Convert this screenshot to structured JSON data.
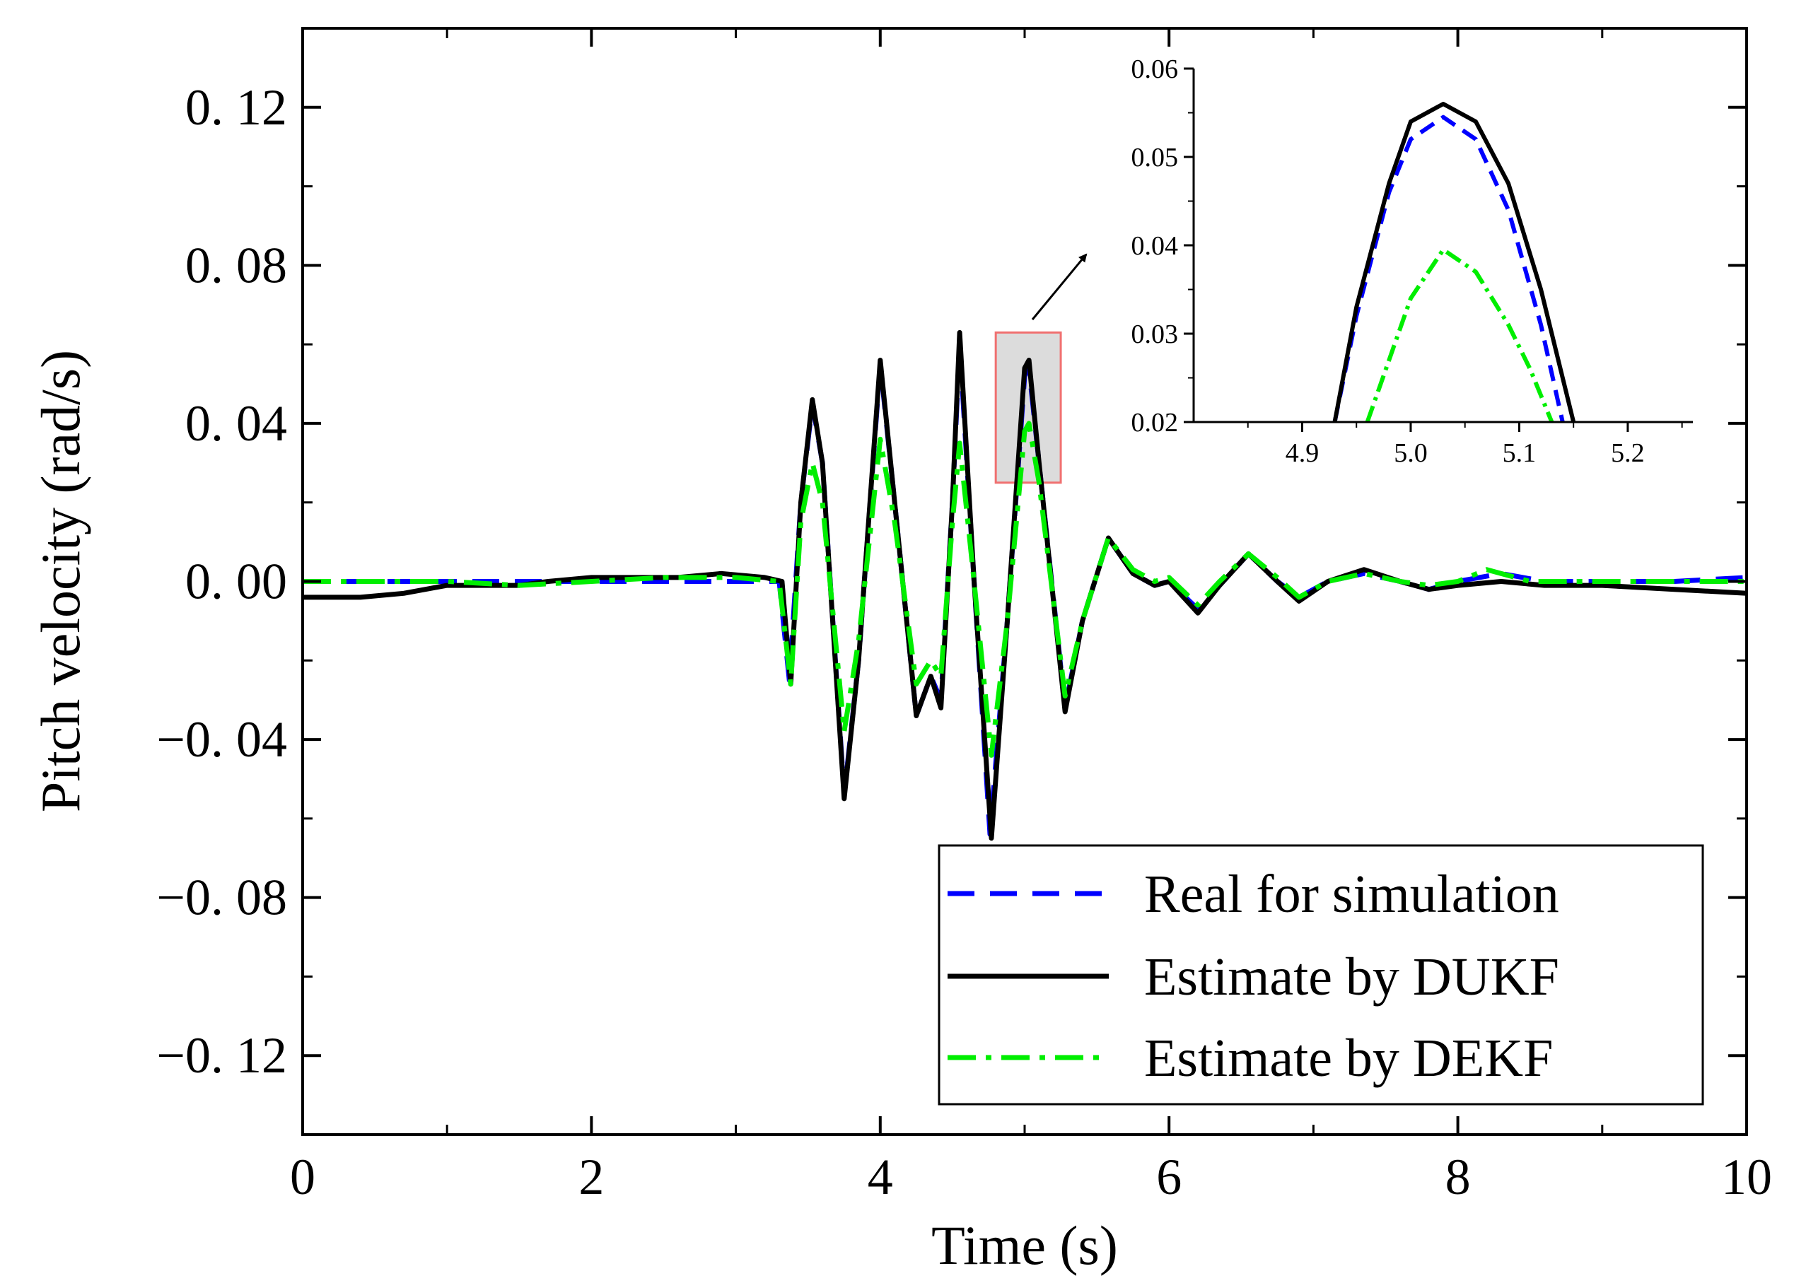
{
  "chart_data": [
    {
      "id": "main",
      "type": "line",
      "title": "",
      "xlabel": "Time (s)",
      "ylabel": "Pitch velocity (rad/s)",
      "xlim": [
        0,
        10
      ],
      "ylim": [
        -0.14,
        0.14
      ],
      "xticks": [
        0,
        2,
        4,
        6,
        8,
        10
      ],
      "xtick_labels": [
        "0",
        "2",
        "4",
        "6",
        "8",
        "10"
      ],
      "yticks": [
        -0.12,
        -0.08,
        -0.04,
        0.0,
        0.04,
        0.08,
        0.12
      ],
      "ytick_labels": [
        "−0. 12",
        "−0. 08",
        "−0. 04",
        "0. 00",
        "0. 04",
        "0. 08",
        "0. 12"
      ],
      "grid": false,
      "legend_position": "bottom-right",
      "series": [
        {
          "name": "Real for simulation",
          "color": "#0000ff",
          "style": "dashed",
          "points": [
            [
              0,
              0.0
            ],
            [
              0.5,
              0.0
            ],
            [
              1.0,
              0.0
            ],
            [
              1.5,
              0.0
            ],
            [
              2.0,
              0.0
            ],
            [
              2.5,
              0.0
            ],
            [
              3.0,
              0.0
            ],
            [
              3.3,
              0.0
            ],
            [
              3.37,
              -0.025
            ],
            [
              3.45,
              0.02
            ],
            [
              3.53,
              0.045
            ],
            [
              3.6,
              0.03
            ],
            [
              3.75,
              -0.054
            ],
            [
              3.85,
              -0.02
            ],
            [
              4.0,
              0.055
            ],
            [
              4.1,
              0.02
            ],
            [
              4.25,
              -0.034
            ],
            [
              4.35,
              -0.024
            ],
            [
              4.42,
              -0.03
            ],
            [
              4.5,
              0.02
            ],
            [
              4.55,
              0.06
            ],
            [
              4.65,
              0.0
            ],
            [
              4.76,
              -0.064
            ],
            [
              4.88,
              -0.01
            ],
            [
              5.0,
              0.052
            ],
            [
              5.03,
              0.054
            ],
            [
              5.1,
              0.03
            ],
            [
              5.28,
              -0.032
            ],
            [
              5.4,
              -0.01
            ],
            [
              5.58,
              0.011
            ],
            [
              5.75,
              0.002
            ],
            [
              5.9,
              -0.001
            ],
            [
              6.0,
              0.0
            ],
            [
              6.2,
              -0.007
            ],
            [
              6.35,
              -0.001
            ],
            [
              6.55,
              0.007
            ],
            [
              6.75,
              0.0
            ],
            [
              6.9,
              -0.004
            ],
            [
              7.1,
              0.0
            ],
            [
              7.35,
              0.002
            ],
            [
              7.6,
              0.0
            ],
            [
              7.8,
              -0.002
            ],
            [
              8.0,
              0.0
            ],
            [
              8.3,
              0.002
            ],
            [
              8.6,
              0.0
            ],
            [
              9.0,
              0.0
            ],
            [
              9.5,
              0.0
            ],
            [
              10.0,
              0.001
            ]
          ]
        },
        {
          "name": "Estimate by DUKF",
          "color": "#000000",
          "style": "solid",
          "points": [
            [
              0,
              -0.004
            ],
            [
              0.4,
              -0.004
            ],
            [
              0.7,
              -0.003
            ],
            [
              1.0,
              -0.001
            ],
            [
              1.5,
              -0.001
            ],
            [
              1.7,
              0.0
            ],
            [
              2.0,
              0.001
            ],
            [
              2.3,
              0.001
            ],
            [
              2.6,
              0.001
            ],
            [
              2.9,
              0.002
            ],
            [
              3.2,
              0.001
            ],
            [
              3.32,
              0.0
            ],
            [
              3.38,
              -0.026
            ],
            [
              3.45,
              0.02
            ],
            [
              3.53,
              0.046
            ],
            [
              3.6,
              0.03
            ],
            [
              3.75,
              -0.055
            ],
            [
              3.85,
              -0.02
            ],
            [
              4.0,
              0.056
            ],
            [
              4.1,
              0.02
            ],
            [
              4.25,
              -0.034
            ],
            [
              4.35,
              -0.024
            ],
            [
              4.42,
              -0.032
            ],
            [
              4.5,
              0.02
            ],
            [
              4.55,
              0.063
            ],
            [
              4.65,
              0.0
            ],
            [
              4.77,
              -0.065
            ],
            [
              4.88,
              -0.01
            ],
            [
              5.0,
              0.054
            ],
            [
              5.03,
              0.056
            ],
            [
              5.1,
              0.03
            ],
            [
              5.28,
              -0.033
            ],
            [
              5.4,
              -0.01
            ],
            [
              5.58,
              0.011
            ],
            [
              5.75,
              0.002
            ],
            [
              5.9,
              -0.001
            ],
            [
              6.0,
              0.0
            ],
            [
              6.2,
              -0.008
            ],
            [
              6.35,
              -0.001
            ],
            [
              6.55,
              0.007
            ],
            [
              6.75,
              0.0
            ],
            [
              6.9,
              -0.005
            ],
            [
              7.1,
              0.0
            ],
            [
              7.35,
              0.003
            ],
            [
              7.6,
              0.0
            ],
            [
              7.8,
              -0.002
            ],
            [
              8.0,
              -0.001
            ],
            [
              8.3,
              0.0
            ],
            [
              8.6,
              -0.001
            ],
            [
              9.0,
              -0.001
            ],
            [
              9.5,
              -0.002
            ],
            [
              10.0,
              -0.003
            ]
          ]
        },
        {
          "name": "Estimate by DEKF",
          "color": "#00ee00",
          "style": "dashdot",
          "points": [
            [
              0,
              0.0
            ],
            [
              0.5,
              0.0
            ],
            [
              1.0,
              0.0
            ],
            [
              1.5,
              -0.001
            ],
            [
              2.0,
              0.0
            ],
            [
              2.5,
              0.001
            ],
            [
              3.0,
              0.001
            ],
            [
              3.3,
              0.0
            ],
            [
              3.38,
              -0.026
            ],
            [
              3.45,
              0.015
            ],
            [
              3.53,
              0.03
            ],
            [
              3.6,
              0.02
            ],
            [
              3.75,
              -0.038
            ],
            [
              3.85,
              -0.015
            ],
            [
              4.0,
              0.036
            ],
            [
              4.1,
              0.015
            ],
            [
              4.25,
              -0.026
            ],
            [
              4.35,
              -0.02
            ],
            [
              4.42,
              -0.024
            ],
            [
              4.5,
              0.015
            ],
            [
              4.55,
              0.035
            ],
            [
              4.65,
              0.0
            ],
            [
              4.77,
              -0.044
            ],
            [
              4.88,
              -0.01
            ],
            [
              5.0,
              0.038
            ],
            [
              5.03,
              0.04
            ],
            [
              5.1,
              0.025
            ],
            [
              5.28,
              -0.029
            ],
            [
              5.4,
              -0.01
            ],
            [
              5.58,
              0.011
            ],
            [
              5.75,
              0.003
            ],
            [
              5.9,
              0.0
            ],
            [
              6.0,
              0.001
            ],
            [
              6.2,
              -0.006
            ],
            [
              6.35,
              0.0
            ],
            [
              6.55,
              0.007
            ],
            [
              6.75,
              0.001
            ],
            [
              6.9,
              -0.004
            ],
            [
              7.1,
              0.0
            ],
            [
              7.35,
              0.002
            ],
            [
              7.6,
              0.0
            ],
            [
              7.8,
              -0.001
            ],
            [
              8.0,
              0.0
            ],
            [
              8.2,
              0.003
            ],
            [
              8.5,
              0.0
            ],
            [
              9.0,
              0.0
            ],
            [
              9.5,
              0.0
            ],
            [
              10.0,
              0.0
            ]
          ]
        }
      ],
      "zoom_region": {
        "x": [
          4.8,
          5.25
        ],
        "y": [
          0.025,
          0.063
        ]
      }
    },
    {
      "id": "inset",
      "type": "line",
      "title": "",
      "xlim": [
        4.8,
        5.26
      ],
      "ylim": [
        0.02,
        0.06
      ],
      "xticks": [
        4.9,
        5.0,
        5.1,
        5.2
      ],
      "xtick_labels": [
        "4.9",
        "5.0",
        "5.1",
        "5.2"
      ],
      "yticks": [
        0.02,
        0.03,
        0.04,
        0.05,
        0.06
      ],
      "ytick_labels": [
        "0.02",
        "0.03",
        "0.04",
        "0.05",
        "0.06"
      ],
      "series": [
        {
          "name": "Real for simulation",
          "color": "#0000ff",
          "style": "dashed",
          "points": [
            [
              4.93,
              0.02
            ],
            [
              4.95,
              0.032
            ],
            [
              4.98,
              0.046
            ],
            [
              5.0,
              0.052
            ],
            [
              5.03,
              0.0545
            ],
            [
              5.06,
              0.052
            ],
            [
              5.09,
              0.044
            ],
            [
              5.12,
              0.031
            ],
            [
              5.14,
              0.02
            ]
          ]
        },
        {
          "name": "Estimate by DUKF",
          "color": "#000000",
          "style": "solid",
          "points": [
            [
              4.93,
              0.02
            ],
            [
              4.95,
              0.033
            ],
            [
              4.98,
              0.047
            ],
            [
              5.0,
              0.054
            ],
            [
              5.03,
              0.056
            ],
            [
              5.06,
              0.054
            ],
            [
              5.09,
              0.047
            ],
            [
              5.12,
              0.035
            ],
            [
              5.15,
              0.02
            ]
          ]
        },
        {
          "name": "Estimate by DEKF",
          "color": "#00ee00",
          "style": "dashdot",
          "points": [
            [
              4.96,
              0.02
            ],
            [
              4.98,
              0.027
            ],
            [
              5.0,
              0.034
            ],
            [
              5.03,
              0.0395
            ],
            [
              5.06,
              0.037
            ],
            [
              5.09,
              0.031
            ],
            [
              5.11,
              0.026
            ],
            [
              5.13,
              0.02
            ]
          ]
        }
      ]
    }
  ]
}
